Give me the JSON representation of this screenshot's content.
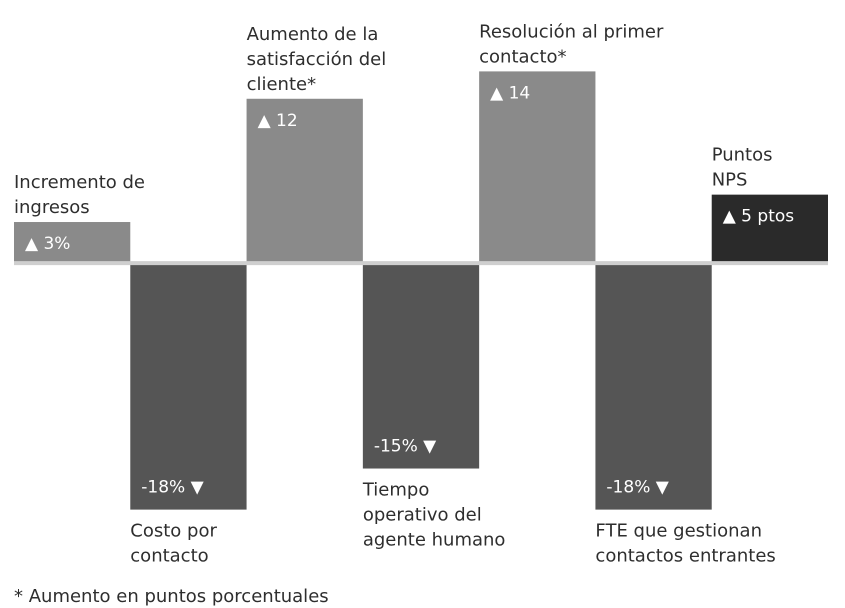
{
  "chart_data": {
    "type": "bar",
    "categories": [
      [
        "Incremento de",
        "ingresos"
      ],
      [
        "Costo por",
        "contacto"
      ],
      [
        "Aumento de la",
        "satisfacción del",
        "cliente*"
      ],
      [
        "Tiempo",
        "operativo del",
        "agente humano"
      ],
      [
        "Resolución al primer",
        "contacto*"
      ],
      [
        "FTE que gestionan",
        "contactos entrantes"
      ],
      [
        "Puntos",
        "NPS"
      ]
    ],
    "values": [
      3,
      -18,
      12,
      -15,
      14,
      -18,
      5
    ],
    "value_labels": [
      "▲ 3%",
      "-18% ▼",
      "▲ 12",
      "-15% ▼",
      "▲ 14",
      "-18% ▼",
      "▲ 5 ptos"
    ],
    "colors": [
      "#8a8a8a",
      "#555555",
      "#8a8a8a",
      "#555555",
      "#8a8a8a",
      "#555555",
      "#2a2a2a"
    ],
    "ylim": [
      -20,
      16
    ],
    "footnote": "* Aumento en puntos porcentuales"
  }
}
